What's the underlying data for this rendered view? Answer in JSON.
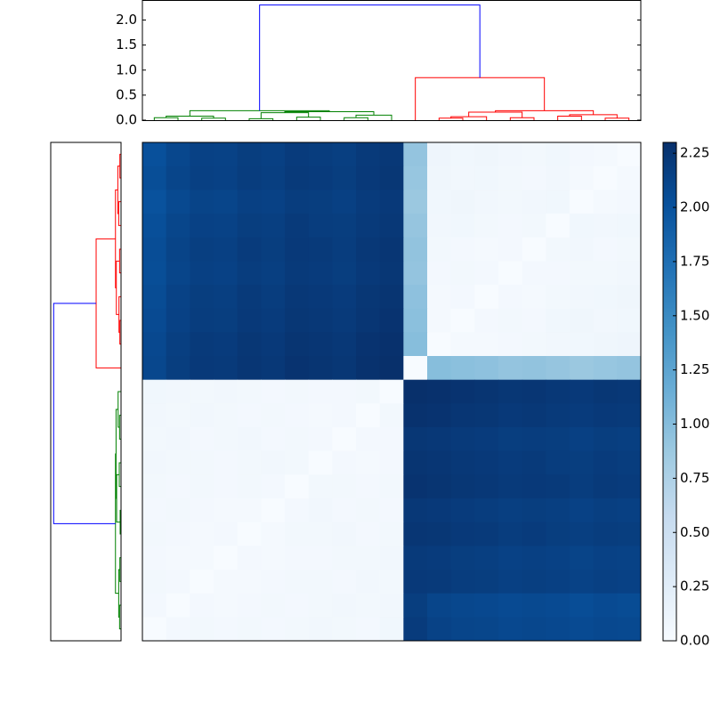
{
  "chart_data": {
    "type": "heatmap",
    "colormap": "Blues",
    "matrix": [
      [
        2.02,
        2.1,
        2.15,
        2.14,
        2.18,
        2.16,
        2.2,
        2.19,
        2.17,
        2.21,
        2.23,
        0.92,
        0.1,
        0.08,
        0.09,
        0.07,
        0.06,
        0.08,
        0.05,
        0.04,
        0
      ],
      [
        2.04,
        2.12,
        2.16,
        2.15,
        2.19,
        2.17,
        2.21,
        2.2,
        2.18,
        2.22,
        2.24,
        0.9,
        0.09,
        0.07,
        0.08,
        0.06,
        0.05,
        0.07,
        0.04,
        0,
        0.04
      ],
      [
        2.0,
        2.08,
        2.13,
        2.12,
        2.16,
        2.15,
        2.19,
        2.18,
        2.16,
        2.2,
        2.22,
        0.88,
        0.08,
        0.09,
        0.07,
        0.06,
        0.07,
        0.08,
        0,
        0.04,
        0.05
      ],
      [
        2.03,
        2.11,
        2.15,
        2.14,
        2.18,
        2.17,
        2.21,
        2.19,
        2.18,
        2.21,
        2.23,
        0.91,
        0.07,
        0.08,
        0.06,
        0.05,
        0.06,
        0,
        0.08,
        0.07,
        0.08
      ],
      [
        2.05,
        2.13,
        2.17,
        2.16,
        2.2,
        2.18,
        2.22,
        2.21,
        2.19,
        2.23,
        2.25,
        0.93,
        0.06,
        0.05,
        0.04,
        0.05,
        0,
        0.06,
        0.07,
        0.05,
        0.06
      ],
      [
        2.04,
        2.12,
        2.16,
        2.15,
        2.19,
        2.17,
        2.21,
        2.2,
        2.18,
        2.22,
        2.24,
        0.92,
        0.05,
        0.06,
        0.05,
        0,
        0.05,
        0.05,
        0.06,
        0.06,
        0.07
      ],
      [
        2.06,
        2.14,
        2.18,
        2.17,
        2.21,
        2.19,
        2.23,
        2.22,
        2.2,
        2.24,
        2.26,
        0.95,
        0.04,
        0.05,
        0,
        0.05,
        0.04,
        0.06,
        0.07,
        0.08,
        0.09
      ],
      [
        2.07,
        2.15,
        2.19,
        2.18,
        2.22,
        2.2,
        2.24,
        2.23,
        2.21,
        2.25,
        2.27,
        0.97,
        0.04,
        0,
        0.05,
        0.06,
        0.05,
        0.08,
        0.09,
        0.07,
        0.08
      ],
      [
        2.09,
        2.17,
        2.21,
        2.2,
        2.24,
        2.22,
        2.26,
        2.25,
        2.23,
        2.27,
        2.29,
        0.99,
        0,
        0.04,
        0.04,
        0.05,
        0.06,
        0.07,
        0.08,
        0.09,
        0.1
      ],
      [
        2.1,
        2.18,
        2.22,
        2.21,
        2.25,
        2.23,
        2.27,
        2.26,
        2.24,
        2.28,
        2.3,
        0,
        0.99,
        0.97,
        0.95,
        0.92,
        0.93,
        0.91,
        0.88,
        0.9,
        0.92
      ],
      [
        0.08,
        0.07,
        0.06,
        0.07,
        0.06,
        0.05,
        0.06,
        0.05,
        0.05,
        0.06,
        0,
        2.3,
        2.29,
        2.27,
        2.26,
        2.24,
        2.25,
        2.23,
        2.22,
        2.24,
        2.23
      ],
      [
        0.07,
        0.06,
        0.07,
        0.06,
        0.05,
        0.06,
        0.05,
        0.04,
        0.05,
        0,
        0.06,
        2.28,
        2.27,
        2.25,
        2.24,
        2.22,
        2.23,
        2.21,
        2.2,
        2.22,
        2.21
      ],
      [
        0.06,
        0.07,
        0.05,
        0.06,
        0.07,
        0.05,
        0.06,
        0.05,
        0,
        0.05,
        0.05,
        2.24,
        2.23,
        2.21,
        2.2,
        2.18,
        2.19,
        2.18,
        2.16,
        2.18,
        2.17
      ],
      [
        0.07,
        0.06,
        0.06,
        0.05,
        0.06,
        0.07,
        0.06,
        0,
        0.05,
        0.04,
        0.05,
        2.26,
        2.25,
        2.23,
        2.22,
        2.2,
        2.21,
        2.19,
        2.18,
        2.2,
        2.19
      ],
      [
        0.06,
        0.05,
        0.06,
        0.05,
        0.06,
        0.05,
        0,
        0.06,
        0.06,
        0.05,
        0.06,
        2.27,
        2.26,
        2.24,
        2.23,
        2.21,
        2.22,
        2.21,
        2.19,
        2.21,
        2.2
      ],
      [
        0.05,
        0.06,
        0.05,
        0.04,
        0.03,
        0,
        0.05,
        0.07,
        0.05,
        0.06,
        0.05,
        2.23,
        2.22,
        2.2,
        2.19,
        2.17,
        2.18,
        2.17,
        2.15,
        2.17,
        2.16
      ],
      [
        0.06,
        0.05,
        0.04,
        0.05,
        0,
        0.03,
        0.06,
        0.06,
        0.07,
        0.05,
        0.06,
        2.25,
        2.24,
        2.22,
        2.21,
        2.19,
        2.2,
        2.18,
        2.17,
        2.19,
        2.18
      ],
      [
        0.05,
        0.04,
        0.04,
        0,
        0.05,
        0.04,
        0.05,
        0.05,
        0.06,
        0.06,
        0.07,
        2.21,
        2.2,
        2.18,
        2.17,
        2.15,
        2.16,
        2.15,
        2.13,
        2.15,
        2.14
      ],
      [
        0.06,
        0.05,
        0,
        0.04,
        0.04,
        0.05,
        0.06,
        0.06,
        0.05,
        0.07,
        0.06,
        2.22,
        2.21,
        2.19,
        2.18,
        2.16,
        2.17,
        2.16,
        2.14,
        2.16,
        2.15
      ],
      [
        0.05,
        0,
        0.05,
        0.04,
        0.05,
        0.06,
        0.05,
        0.06,
        0.07,
        0.06,
        0.07,
        2.18,
        2.12,
        2.1,
        2.09,
        2.07,
        2.08,
        2.07,
        2.05,
        2.07,
        2.06
      ],
      [
        0,
        0.05,
        0.06,
        0.05,
        0.06,
        0.05,
        0.06,
        0.07,
        0.06,
        0.05,
        0.08,
        2.2,
        2.14,
        2.12,
        2.11,
        2.09,
        2.1,
        2.09,
        2.07,
        2.09,
        2.08
      ]
    ],
    "clim": [
      0,
      2.3
    ],
    "colorbar_ticks": [
      {
        "value": 0,
        "label": "0.00"
      },
      {
        "value": 0.25,
        "label": "0.25"
      },
      {
        "value": 0.5,
        "label": "0.50"
      },
      {
        "value": 0.75,
        "label": "0.75"
      },
      {
        "value": 1,
        "label": "1.00"
      },
      {
        "value": 1.25,
        "label": "1.25"
      },
      {
        "value": 1.5,
        "label": "1.50"
      },
      {
        "value": 1.75,
        "label": "1.75"
      },
      {
        "value": 2,
        "label": "2.00"
      },
      {
        "value": 2.25,
        "label": "2.25"
      }
    ],
    "dendrogram": {
      "xlim": [
        0,
        21
      ],
      "ylim": [
        0,
        2.4
      ],
      "yticks": [
        {
          "value": 0,
          "label": "0.0"
        },
        {
          "value": 0.5,
          "label": "0.5"
        },
        {
          "value": 1,
          "label": "1.0"
        },
        {
          "value": 1.5,
          "label": "1.5"
        },
        {
          "value": 2,
          "label": "2.0"
        }
      ],
      "links": [
        {
          "color": "#008000",
          "x": [
            0.5,
            0.5,
            1.5,
            1.5
          ],
          "y": [
            0,
            0.05,
            0.05,
            0
          ]
        },
        {
          "color": "#008000",
          "x": [
            2.5,
            2.5,
            3.5,
            3.5
          ],
          "y": [
            0,
            0.04,
            0.04,
            0
          ]
        },
        {
          "color": "#008000",
          "x": [
            1,
            1,
            3,
            3
          ],
          "y": [
            0.05,
            0.08,
            0.08,
            0.04
          ]
        },
        {
          "color": "#008000",
          "x": [
            4.5,
            4.5,
            5.5,
            5.5
          ],
          "y": [
            0,
            0.03,
            0.03,
            0
          ]
        },
        {
          "color": "#008000",
          "x": [
            6.5,
            6.5,
            7.5,
            7.5
          ],
          "y": [
            0,
            0.06,
            0.06,
            0
          ]
        },
        {
          "color": "#008000",
          "x": [
            5,
            5,
            7,
            7
          ],
          "y": [
            0.03,
            0.15,
            0.15,
            0.06
          ]
        },
        {
          "color": "#008000",
          "x": [
            8.5,
            8.5,
            9.5,
            9.5
          ],
          "y": [
            0,
            0.05,
            0.05,
            0
          ]
        },
        {
          "color": "#008000",
          "x": [
            9,
            9,
            10.5,
            10.5
          ],
          "y": [
            0.05,
            0.1,
            0.1,
            0
          ]
        },
        {
          "color": "#008000",
          "x": [
            6,
            6,
            9.75,
            9.75
          ],
          "y": [
            0.15,
            0.17,
            0.17,
            0.1
          ]
        },
        {
          "color": "#008000",
          "x": [
            2,
            2,
            7.875,
            7.875
          ],
          "y": [
            0.08,
            0.19,
            0.19,
            0.17
          ]
        },
        {
          "color": "#ff0000",
          "x": [
            12.5,
            12.5,
            13.5,
            13.5
          ],
          "y": [
            0,
            0.04,
            0.04,
            0
          ]
        },
        {
          "color": "#ff0000",
          "x": [
            13,
            13,
            14.5,
            14.5
          ],
          "y": [
            0.04,
            0.07,
            0.07,
            0
          ]
        },
        {
          "color": "#ff0000",
          "x": [
            15.5,
            15.5,
            16.5,
            16.5
          ],
          "y": [
            0,
            0.05,
            0.05,
            0
          ]
        },
        {
          "color": "#ff0000",
          "x": [
            13.75,
            13.75,
            16,
            16
          ],
          "y": [
            0.07,
            0.16,
            0.16,
            0.05
          ]
        },
        {
          "color": "#ff0000",
          "x": [
            17.5,
            17.5,
            18.5,
            18.5
          ],
          "y": [
            0,
            0.08,
            0.08,
            0
          ]
        },
        {
          "color": "#ff0000",
          "x": [
            19.5,
            19.5,
            20.5,
            20.5
          ],
          "y": [
            0,
            0.04,
            0.04,
            0
          ]
        },
        {
          "color": "#ff0000",
          "x": [
            18,
            18,
            20,
            20
          ],
          "y": [
            0.08,
            0.11,
            0.11,
            0.04
          ]
        },
        {
          "color": "#ff0000",
          "x": [
            14.875,
            14.875,
            19,
            19
          ],
          "y": [
            0.16,
            0.19,
            0.19,
            0.11
          ]
        },
        {
          "color": "#ff0000",
          "x": [
            11.5,
            11.5,
            16.9375,
            16.9375
          ],
          "y": [
            0,
            0.85,
            0.85,
            0.19
          ]
        },
        {
          "color": "#0000ff",
          "x": [
            4.9375,
            4.9375,
            14.21875,
            14.21875
          ],
          "y": [
            0.19,
            2.3,
            2.3,
            0.85
          ]
        }
      ]
    }
  }
}
